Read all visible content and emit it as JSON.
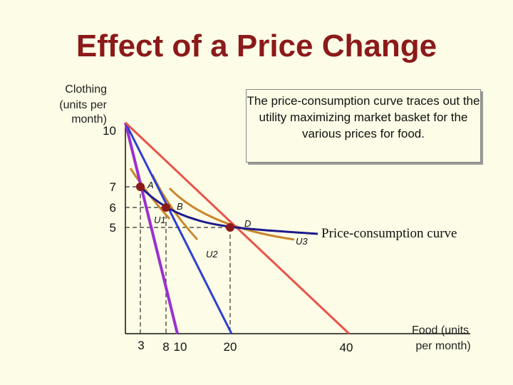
{
  "title": "Effect of a Price Change",
  "callout": "The price-consumption curve traces out the utility maximizing market basket for the various prices for food.",
  "colors": {
    "title": "#8b1a1a",
    "background": "#fdfce6",
    "budget_line_1": "#9b30d0",
    "budget_line_2": "#2c3fd6",
    "budget_line_3": "#e8534a",
    "price_consumption_curve": "#1a1a8c",
    "indifference_curves": "#c8862e",
    "points": "#8b1a1a"
  },
  "chart_data": {
    "type": "line",
    "xlabel": "Food (units per month)",
    "ylabel": "Clothing (units per month)",
    "x_ticks": [
      3,
      8,
      10,
      20,
      40
    ],
    "y_ticks": [
      10,
      7,
      6,
      5
    ],
    "budget_lines": [
      {
        "x": [
          0,
          10
        ],
        "y": [
          10,
          0
        ]
      },
      {
        "x": [
          0,
          20
        ],
        "y": [
          10,
          0
        ]
      },
      {
        "x": [
          0,
          40
        ],
        "y": [
          10,
          0
        ]
      }
    ],
    "points": [
      {
        "label": "A",
        "x": 3,
        "y": 7
      },
      {
        "label": "B",
        "x": 8,
        "y": 6
      },
      {
        "label": "D",
        "x": 20,
        "y": 5
      }
    ],
    "indifference_curves": [
      "U1",
      "U2",
      "U3"
    ],
    "price_consumption_curve": {
      "label": "Price-consumption curve"
    }
  }
}
